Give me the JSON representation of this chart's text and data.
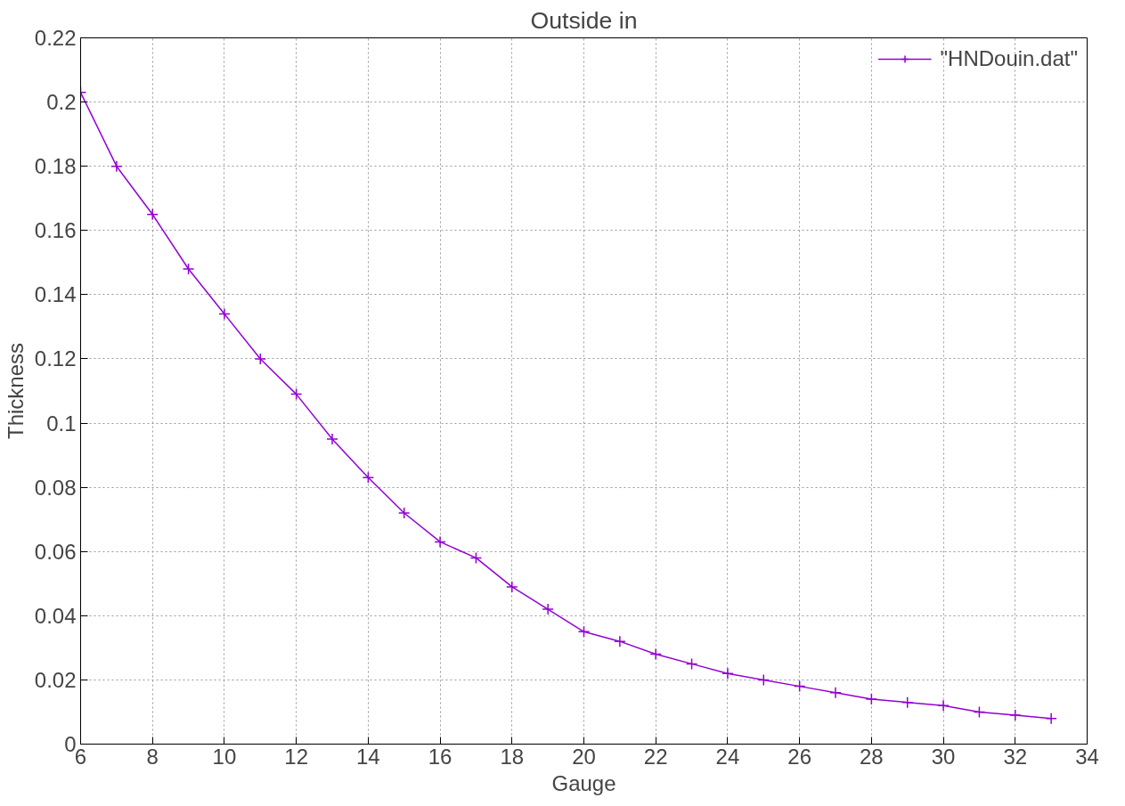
{
  "chart_data": {
    "type": "line",
    "title": "Outside in",
    "xlabel": "Gauge",
    "ylabel": "Thickness",
    "x": [
      6,
      7,
      8,
      9,
      10,
      11,
      12,
      13,
      14,
      15,
      16,
      17,
      18,
      19,
      20,
      21,
      22,
      23,
      24,
      25,
      26,
      27,
      28,
      29,
      30,
      31,
      32,
      33
    ],
    "series": [
      {
        "name": "\"HNDouin.dat\"",
        "color": "#9400d3",
        "values": [
          0.203,
          0.18,
          0.165,
          0.148,
          0.134,
          0.12,
          0.109,
          0.095,
          0.083,
          0.072,
          0.063,
          0.058,
          0.049,
          0.042,
          0.035,
          0.032,
          0.028,
          0.025,
          0.022,
          0.02,
          0.018,
          0.016,
          0.014,
          0.013,
          0.012,
          0.01,
          0.009,
          0.008
        ]
      }
    ],
    "xlim": [
      6,
      34
    ],
    "xticks": [
      6,
      8,
      10,
      12,
      14,
      16,
      18,
      20,
      22,
      24,
      26,
      28,
      30,
      32,
      34
    ],
    "ylim": [
      0,
      0.22
    ],
    "yticks": [
      0,
      0.02,
      0.04,
      0.06,
      0.08,
      0.1,
      0.12,
      0.14,
      0.16,
      0.18,
      0.2,
      0.22
    ],
    "grid": true,
    "legend": "top right",
    "marker": "cross",
    "line_style": "solid"
  }
}
